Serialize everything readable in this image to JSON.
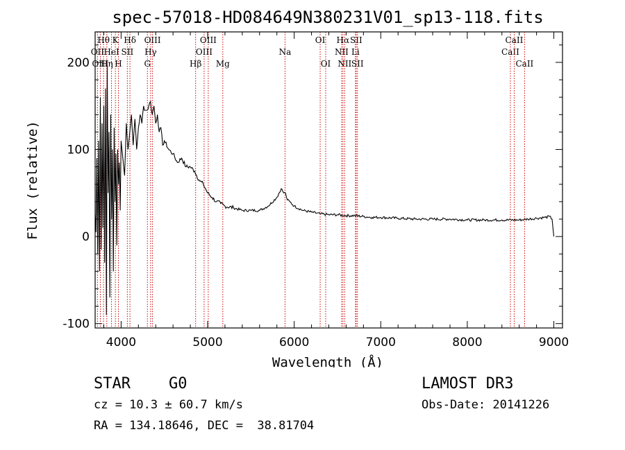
{
  "chart_data": {
    "type": "line",
    "title": "spec-57018-HD084649N380231V01_sp13-118.fits",
    "xlabel": "Wavelength (Å)",
    "ylabel": "Flux (relative)",
    "xlim": [
      3700,
      9100
    ],
    "ylim": [
      -105,
      235
    ],
    "xticks": [
      4000,
      5000,
      6000,
      7000,
      8000,
      9000
    ],
    "yticks": [
      -100,
      0,
      100,
      200
    ],
    "line_color": "#000000",
    "marker_color": "#cc0000",
    "series": [
      {
        "name": "spectrum",
        "x": [
          3700,
          3710,
          3720,
          3730,
          3740,
          3750,
          3760,
          3770,
          3780,
          3790,
          3800,
          3810,
          3820,
          3830,
          3840,
          3850,
          3860,
          3870,
          3880,
          3890,
          3900,
          3910,
          3920,
          3930,
          3940,
          3950,
          3960,
          3970,
          3980,
          3990,
          4000,
          4020,
          4040,
          4060,
          4080,
          4100,
          4120,
          4140,
          4160,
          4180,
          4200,
          4220,
          4240,
          4260,
          4280,
          4300,
          4320,
          4340,
          4360,
          4380,
          4400,
          4420,
          4440,
          4460,
          4480,
          4500,
          4550,
          4600,
          4650,
          4700,
          4750,
          4800,
          4850,
          4900,
          4950,
          5000,
          5050,
          5100,
          5150,
          5200,
          5300,
          5400,
          5500,
          5600,
          5700,
          5800,
          5850,
          5880,
          5900,
          5920,
          5950,
          6000,
          6100,
          6200,
          6300,
          6400,
          6500,
          6600,
          6700,
          6800,
          6900,
          7000,
          7200,
          7400,
          7600,
          7800,
          8000,
          8200,
          8400,
          8600,
          8700,
          8800,
          8900,
          8950,
          8980,
          9000
        ],
        "values": [
          25,
          5,
          90,
          -20,
          110,
          -40,
          160,
          -15,
          130,
          10,
          150,
          -30,
          170,
          -90,
          195,
          50,
          120,
          -70,
          140,
          20,
          100,
          -40,
          125,
          40,
          95,
          -10,
          100,
          60,
          85,
          30,
          110,
          90,
          70,
          130,
          100,
          120,
          140,
          105,
          135,
          100,
          125,
          140,
          130,
          150,
          145,
          145,
          150,
          155,
          140,
          150,
          130,
          140,
          120,
          125,
          105,
          110,
          100,
          95,
          85,
          90,
          80,
          80,
          75,
          65,
          60,
          50,
          45,
          40,
          38,
          35,
          33,
          30,
          30,
          30,
          35,
          45,
          55,
          50,
          50,
          42,
          40,
          35,
          30,
          28,
          26,
          25,
          25,
          24,
          24,
          23,
          22,
          22,
          21,
          20,
          20,
          20,
          19,
          19,
          19,
          19,
          20,
          21,
          22,
          23,
          20,
          0
        ]
      }
    ],
    "spectral_lines": [
      {
        "label": "OII",
        "x": 3727,
        "row": 2
      },
      {
        "label": "OIII",
        "x": 3760,
        "row": 3
      },
      {
        "label": "Hθ",
        "x": 3797,
        "row": 1
      },
      {
        "label": "Hη",
        "x": 3835,
        "row": 3
      },
      {
        "label": "HeI",
        "x": 3889,
        "row": 2
      },
      {
        "label": "K",
        "x": 3934,
        "row": 1
      },
      {
        "label": "H",
        "x": 3969,
        "row": 3
      },
      {
        "label": "SII",
        "x": 4072,
        "row": 2
      },
      {
        "label": "Hδ",
        "x": 4102,
        "row": 1
      },
      {
        "label": "G",
        "x": 4304,
        "row": 3
      },
      {
        "label": "Hγ",
        "x": 4341,
        "row": 2
      },
      {
        "label": "OIII",
        "x": 4363,
        "row": 1
      },
      {
        "label": "Hβ",
        "x": 4861,
        "row": 3
      },
      {
        "label": "OIII",
        "x": 4959,
        "row": 2
      },
      {
        "label": "OIII",
        "x": 5007,
        "row": 1
      },
      {
        "label": "Mg",
        "x": 5175,
        "row": 3
      },
      {
        "label": "Na",
        "x": 5894,
        "row": 2
      },
      {
        "label": "OI",
        "x": 6300,
        "row": 1
      },
      {
        "label": "OI",
        "x": 6364,
        "row": 3
      },
      {
        "label": "NII",
        "x": 6548,
        "row": 2
      },
      {
        "label": "Hα",
        "x": 6563,
        "row": 1
      },
      {
        "label": "NII",
        "x": 6583,
        "row": 3
      },
      {
        "label": "Li",
        "x": 6708,
        "row": 2
      },
      {
        "label": "SII",
        "x": 6716,
        "row": 1
      },
      {
        "label": "SII",
        "x": 6731,
        "row": 3
      },
      {
        "label": "CaII",
        "x": 8498,
        "row": 2
      },
      {
        "label": "CaII",
        "x": 8542,
        "row": 1
      },
      {
        "label": "CaII",
        "x": 8662,
        "row": 3
      }
    ]
  },
  "info": {
    "class": "STAR",
    "subclass": "G0",
    "survey": "LAMOST DR3",
    "cz": "cz = 10.3 ± 60.7 km/s",
    "obs_date": "Obs-Date: 20141226",
    "coords": "RA = 134.18646, DEC =  38.81704"
  }
}
